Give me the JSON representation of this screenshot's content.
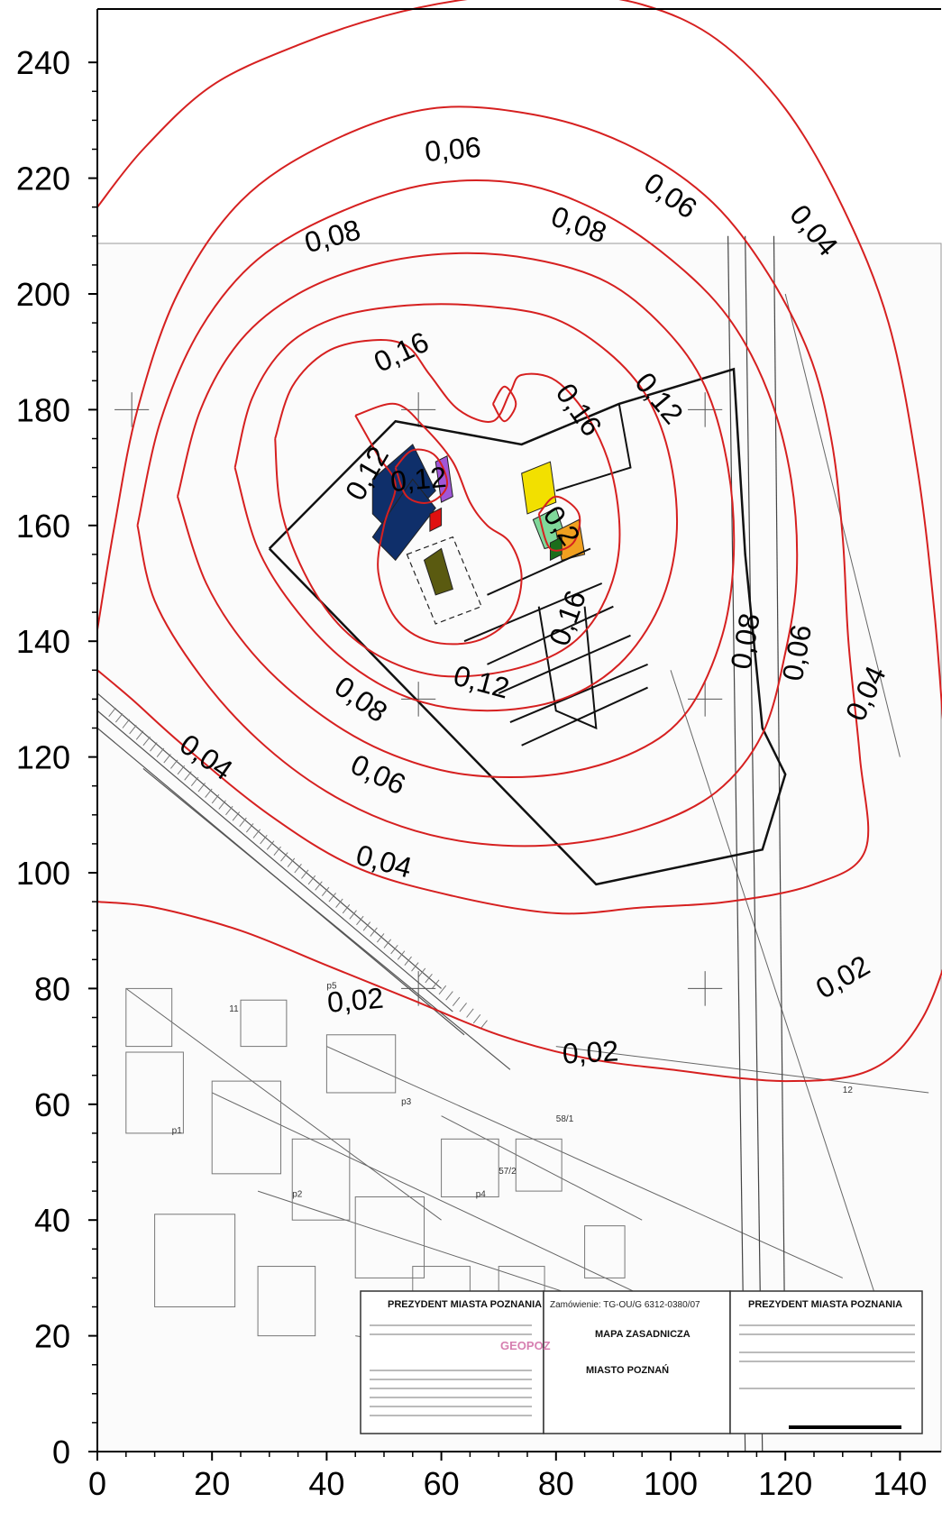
{
  "map": {
    "x_axis": {
      "min": 0,
      "max": 140,
      "ticks": [
        "0",
        "20",
        "40",
        "60",
        "80",
        "100",
        "120",
        "140"
      ]
    },
    "y_axis": {
      "min": 0,
      "max": 240,
      "ticks": [
        "0",
        "20",
        "40",
        "60",
        "80",
        "100",
        "120",
        "140",
        "160",
        "180",
        "200",
        "220",
        "240"
      ]
    },
    "contour_color": "#d62020",
    "contour_labels": [
      {
        "text": "0,06",
        "x": 62,
        "y": 225,
        "rot": -5
      },
      {
        "text": "0,06",
        "x": 100,
        "y": 217,
        "rot": 35
      },
      {
        "text": "0,04",
        "x": 125,
        "y": 211,
        "rot": 50
      },
      {
        "text": "0,08",
        "x": 41,
        "y": 210,
        "rot": -15
      },
      {
        "text": "0,08",
        "x": 84,
        "y": 212,
        "rot": 20
      },
      {
        "text": "0,16",
        "x": 53,
        "y": 190,
        "rot": -25
      },
      {
        "text": "0,16",
        "x": 84,
        "y": 180,
        "rot": 55
      },
      {
        "text": "0,12",
        "x": 98,
        "y": 182,
        "rot": 50
      },
      {
        "text": "0,12",
        "x": 47,
        "y": 169,
        "rot": -60
      },
      {
        "text": "0,12",
        "x": 56,
        "y": 168,
        "rot": -5
      },
      {
        "text": "0,2",
        "x": 81,
        "y": 160,
        "rot": 55
      },
      {
        "text": "0,16",
        "x": 82,
        "y": 144,
        "rot": -70
      },
      {
        "text": "0,12",
        "x": 67,
        "y": 133,
        "rot": 15
      },
      {
        "text": "0,08",
        "x": 46,
        "y": 130,
        "rot": 35
      },
      {
        "text": "0,08",
        "x": 113,
        "y": 140,
        "rot": -80
      },
      {
        "text": "0,06",
        "x": 122,
        "y": 138,
        "rot": -80
      },
      {
        "text": "0,04",
        "x": 134,
        "y": 131,
        "rot": -65
      },
      {
        "text": "0,04",
        "x": 19,
        "y": 120,
        "rot": 35
      },
      {
        "text": "0,06",
        "x": 49,
        "y": 117,
        "rot": 25
      },
      {
        "text": "0,04",
        "x": 50,
        "y": 102,
        "rot": 15
      },
      {
        "text": "0,02",
        "x": 45,
        "y": 78,
        "rot": -5
      },
      {
        "text": "0,02",
        "x": 86,
        "y": 69,
        "rot": -3
      },
      {
        "text": "0,02",
        "x": 130,
        "y": 82,
        "rot": -30
      }
    ],
    "contours": [
      [
        [
          0,
          215
        ],
        [
          8,
          225
        ],
        [
          20,
          236
        ],
        [
          35,
          243
        ],
        [
          50,
          248
        ],
        [
          65,
          251
        ],
        [
          80,
          252
        ],
        [
          95,
          250
        ],
        [
          108,
          244
        ],
        [
          120,
          232
        ],
        [
          130,
          215
        ],
        [
          138,
          195
        ],
        [
          143,
          170
        ],
        [
          146,
          145
        ],
        [
          148,
          120
        ],
        [
          150,
          100
        ],
        [
          150,
          92
        ],
        [
          144,
          75
        ],
        [
          135,
          66
        ],
        [
          120,
          64
        ],
        [
          100,
          66
        ],
        [
          85,
          68
        ],
        [
          70,
          72
        ],
        [
          55,
          78
        ],
        [
          40,
          84
        ],
        [
          25,
          90
        ],
        [
          10,
          94
        ],
        [
          0,
          95
        ]
      ],
      [
        [
          0,
          142
        ],
        [
          3,
          160
        ],
        [
          7,
          180
        ],
        [
          14,
          200
        ],
        [
          25,
          216
        ],
        [
          40,
          226
        ],
        [
          58,
          232
        ],
        [
          76,
          231
        ],
        [
          92,
          226
        ],
        [
          106,
          217
        ],
        [
          116,
          205
        ],
        [
          124,
          190
        ],
        [
          128,
          175
        ],
        [
          130,
          158
        ],
        [
          131,
          140
        ],
        [
          133,
          120
        ],
        [
          134,
          104
        ],
        [
          125,
          98
        ],
        [
          110,
          95
        ],
        [
          95,
          94
        ],
        [
          80,
          93
        ],
        [
          62,
          96
        ],
        [
          45,
          101
        ],
        [
          30,
          110
        ],
        [
          15,
          122
        ],
        [
          6,
          130
        ],
        [
          0,
          135
        ]
      ],
      [
        [
          7,
          160
        ],
        [
          11,
          178
        ],
        [
          18,
          194
        ],
        [
          28,
          206
        ],
        [
          42,
          214
        ],
        [
          58,
          219
        ],
        [
          74,
          219
        ],
        [
          88,
          214
        ],
        [
          100,
          206
        ],
        [
          110,
          196
        ],
        [
          117,
          183
        ],
        [
          121,
          168
        ],
        [
          122,
          152
        ],
        [
          120,
          138
        ],
        [
          116,
          124
        ],
        [
          108,
          114
        ],
        [
          96,
          108
        ],
        [
          82,
          105
        ],
        [
          67,
          105
        ],
        [
          53,
          108
        ],
        [
          40,
          114
        ],
        [
          28,
          123
        ],
        [
          18,
          134
        ],
        [
          10,
          147
        ],
        [
          7,
          160
        ]
      ],
      [
        [
          14,
          165
        ],
        [
          18,
          180
        ],
        [
          25,
          192
        ],
        [
          35,
          200
        ],
        [
          48,
          205
        ],
        [
          62,
          207
        ],
        [
          76,
          206
        ],
        [
          89,
          202
        ],
        [
          99,
          194
        ],
        [
          106,
          184
        ],
        [
          110,
          170
        ],
        [
          111,
          155
        ],
        [
          109,
          141
        ],
        [
          103,
          128
        ],
        [
          94,
          121
        ],
        [
          80,
          117
        ],
        [
          64,
          117
        ],
        [
          50,
          121
        ],
        [
          38,
          128
        ],
        [
          27,
          138
        ],
        [
          19,
          150
        ],
        [
          14,
          165
        ]
      ],
      [
        [
          24,
          170
        ],
        [
          27,
          182
        ],
        [
          33,
          191
        ],
        [
          42,
          196
        ],
        [
          54,
          198
        ],
        [
          66,
          198
        ],
        [
          79,
          196
        ],
        [
          89,
          190
        ],
        [
          96,
          182
        ],
        [
          100,
          171
        ],
        [
          101,
          158
        ],
        [
          98,
          146
        ],
        [
          91,
          136
        ],
        [
          81,
          130
        ],
        [
          68,
          128
        ],
        [
          55,
          130
        ],
        [
          44,
          136
        ],
        [
          35,
          145
        ],
        [
          28,
          156
        ],
        [
          24,
          170
        ]
      ],
      [
        [
          31,
          175
        ],
        [
          34,
          184
        ],
        [
          40,
          190
        ],
        [
          48,
          192
        ],
        [
          54,
          191
        ],
        [
          58,
          186
        ],
        [
          63,
          180
        ],
        [
          69,
          178
        ],
        [
          72,
          183
        ],
        [
          74,
          186
        ],
        [
          80,
          185
        ],
        [
          86,
          178
        ],
        [
          90,
          168
        ],
        [
          91,
          156
        ],
        [
          88,
          146
        ],
        [
          82,
          139
        ],
        [
          72,
          135
        ],
        [
          60,
          134
        ],
        [
          50,
          137
        ],
        [
          42,
          143
        ],
        [
          36,
          152
        ],
        [
          32,
          163
        ],
        [
          31,
          175
        ]
      ],
      [
        [
          45,
          179
        ],
        [
          52,
          181
        ],
        [
          57,
          177
        ],
        [
          62,
          171
        ],
        [
          65,
          164
        ],
        [
          68,
          160
        ],
        [
          72,
          157
        ],
        [
          74,
          151
        ],
        [
          72,
          144
        ],
        [
          66,
          140
        ],
        [
          58,
          140
        ],
        [
          52,
          144
        ],
        [
          49,
          152
        ],
        [
          50,
          160
        ],
        [
          52,
          167
        ],
        [
          49,
          172
        ],
        [
          45,
          179
        ]
      ],
      [
        [
          52,
          170
        ],
        [
          55,
          173
        ],
        [
          59,
          172
        ],
        [
          61,
          167
        ],
        [
          58,
          164
        ],
        [
          54,
          165
        ],
        [
          52,
          170
        ]
      ],
      [
        [
          69,
          181
        ],
        [
          71,
          184
        ],
        [
          73,
          181
        ],
        [
          71,
          178
        ],
        [
          69,
          181
        ]
      ],
      [
        [
          77,
          162
        ],
        [
          80,
          165
        ],
        [
          84,
          162
        ],
        [
          83,
          157
        ],
        [
          79,
          156
        ],
        [
          77,
          162
        ]
      ]
    ],
    "boundary": [
      [
        30,
        156
      ],
      [
        52,
        178
      ],
      [
        74,
        174
      ],
      [
        91,
        181
      ],
      [
        111,
        187
      ],
      [
        113,
        155
      ],
      [
        116,
        125
      ],
      [
        120,
        117
      ],
      [
        116,
        104
      ],
      [
        87,
        98
      ],
      [
        30,
        156
      ]
    ],
    "hatch_lines": [
      [
        [
          68,
          148
        ],
        [
          86,
          156
        ]
      ],
      [
        [
          64,
          140
        ],
        [
          88,
          150
        ]
      ],
      [
        [
          68,
          136
        ],
        [
          90,
          146
        ]
      ],
      [
        [
          70,
          131
        ],
        [
          93,
          141
        ]
      ],
      [
        [
          72,
          126
        ],
        [
          96,
          136
        ]
      ],
      [
        [
          74,
          122
        ],
        [
          96,
          132
        ]
      ]
    ],
    "buildings": [
      {
        "color": "#0f2f6a",
        "pts": [
          [
            48,
            168
          ],
          [
            55,
            174
          ],
          [
            59,
            166
          ],
          [
            55,
            162
          ],
          [
            51,
            159
          ],
          [
            48,
            162
          ]
        ]
      },
      {
        "color": "#0f2f6a",
        "pts": [
          [
            48,
            158
          ],
          [
            52,
            154
          ],
          [
            59,
            163
          ],
          [
            55,
            168
          ]
        ]
      },
      {
        "color": "#a056d8",
        "pts": [
          [
            59,
            171
          ],
          [
            61,
            172
          ],
          [
            62,
            165
          ],
          [
            60,
            164
          ]
        ]
      },
      {
        "color": "#f2e000",
        "pts": [
          [
            74,
            169
          ],
          [
            79,
            171
          ],
          [
            80,
            164
          ],
          [
            75,
            162
          ]
        ]
      },
      {
        "color": "#7fd89a",
        "pts": [
          [
            76,
            161
          ],
          [
            80,
            163
          ],
          [
            82,
            157
          ],
          [
            78,
            156
          ]
        ]
      },
      {
        "color": "#f0a020",
        "pts": [
          [
            80,
            159
          ],
          [
            84,
            161
          ],
          [
            85,
            155
          ],
          [
            81,
            154
          ]
        ]
      },
      {
        "color": "#1b6e1b",
        "pts": [
          [
            79,
            157
          ],
          [
            81,
            158
          ],
          [
            81,
            155
          ],
          [
            79,
            154
          ]
        ]
      },
      {
        "color": "#e01010",
        "pts": [
          [
            58,
            162
          ],
          [
            60,
            163
          ],
          [
            60,
            160
          ],
          [
            58,
            159
          ]
        ]
      },
      {
        "color": "#5a5a10",
        "pts": [
          [
            57,
            154
          ],
          [
            60,
            156
          ],
          [
            62,
            149
          ],
          [
            59,
            148
          ]
        ]
      }
    ],
    "stamps": {
      "left_title": "PREZYDENT MIASTA POZNANIA",
      "center_header": "Zamówienie: TG-OU/G 6312-0380/07",
      "center_title": "MAPA ZASADNICZA",
      "center_city": "MIASTO POZNAŃ",
      "pink_mark": "GEOPOZ",
      "right_title": "PREZYDENT MIASTA POZNANIA"
    },
    "parcel_labels": [
      "p1",
      "p2",
      "p3",
      "p4",
      "p5",
      "12",
      "57/2",
      "58/1",
      "11"
    ]
  }
}
